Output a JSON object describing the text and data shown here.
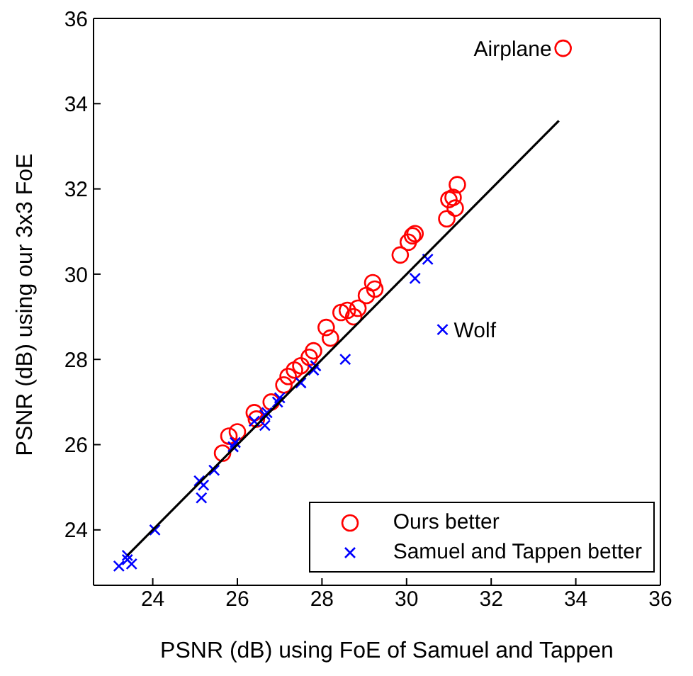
{
  "chart_data": {
    "type": "scatter",
    "xlabel": "PSNR (dB) using FoE of Samuel and Tappen",
    "ylabel": "PSNR (dB) using our 3x3 FoE",
    "xlim": [
      22.6,
      36
    ],
    "ylim": [
      22.7,
      36
    ],
    "xticks": [
      24,
      26,
      28,
      30,
      32,
      34,
      36
    ],
    "yticks": [
      24,
      26,
      28,
      30,
      32,
      34,
      36
    ],
    "grid": false,
    "legend": "bottom right",
    "series": [
      {
        "name": "Ours better",
        "marker": "circle",
        "color": "#ff0000",
        "x": [
          33.7,
          29.85,
          30.04,
          30.14,
          30.2,
          30.95,
          31.0,
          31.1,
          31.2,
          31.15,
          29.2,
          29.05,
          29.25,
          28.85,
          28.6,
          28.45,
          28.75,
          28.1,
          28.2,
          27.8,
          27.7,
          27.5,
          27.35,
          27.2,
          27.1,
          26.8,
          26.4,
          26.45,
          26.0,
          25.8,
          25.65
        ],
        "values": [
          35.3,
          30.45,
          30.75,
          30.9,
          30.95,
          31.3,
          31.75,
          31.8,
          32.1,
          31.55,
          29.8,
          29.5,
          29.65,
          29.2,
          29.15,
          29.1,
          29.0,
          28.75,
          28.5,
          28.2,
          28.05,
          27.85,
          27.75,
          27.6,
          27.4,
          27.0,
          26.75,
          26.6,
          26.3,
          26.2,
          25.8
        ]
      },
      {
        "name": "Samuel and Tappen better",
        "marker": "cross",
        "color": "#0000ff",
        "x": [
          30.85,
          30.2,
          30.5,
          28.55,
          27.85,
          27.8,
          27.5,
          26.95,
          27.0,
          26.65,
          26.7,
          26.4,
          26.65,
          25.95,
          25.9,
          25.45,
          25.1,
          25.2,
          25.15,
          24.05,
          23.4,
          23.2,
          23.5,
          23.4
        ],
        "values": [
          28.7,
          29.9,
          30.35,
          28.0,
          27.85,
          27.75,
          27.45,
          27.0,
          27.1,
          26.7,
          26.75,
          26.55,
          26.45,
          26.05,
          25.95,
          25.4,
          25.15,
          25.05,
          24.75,
          24.0,
          23.4,
          23.15,
          23.2,
          23.3
        ]
      },
      {
        "type": "line",
        "marker": "none",
        "line_style": "solid",
        "color": "#000000",
        "x": [
          23.4,
          33.6
        ],
        "values": [
          23.4,
          33.6
        ]
      }
    ],
    "annotations": [
      {
        "text": "Airplane",
        "x": 33.7,
        "y": 35.3
      },
      {
        "text": "Wolf",
        "x": 30.85,
        "y": 28.7
      }
    ]
  }
}
